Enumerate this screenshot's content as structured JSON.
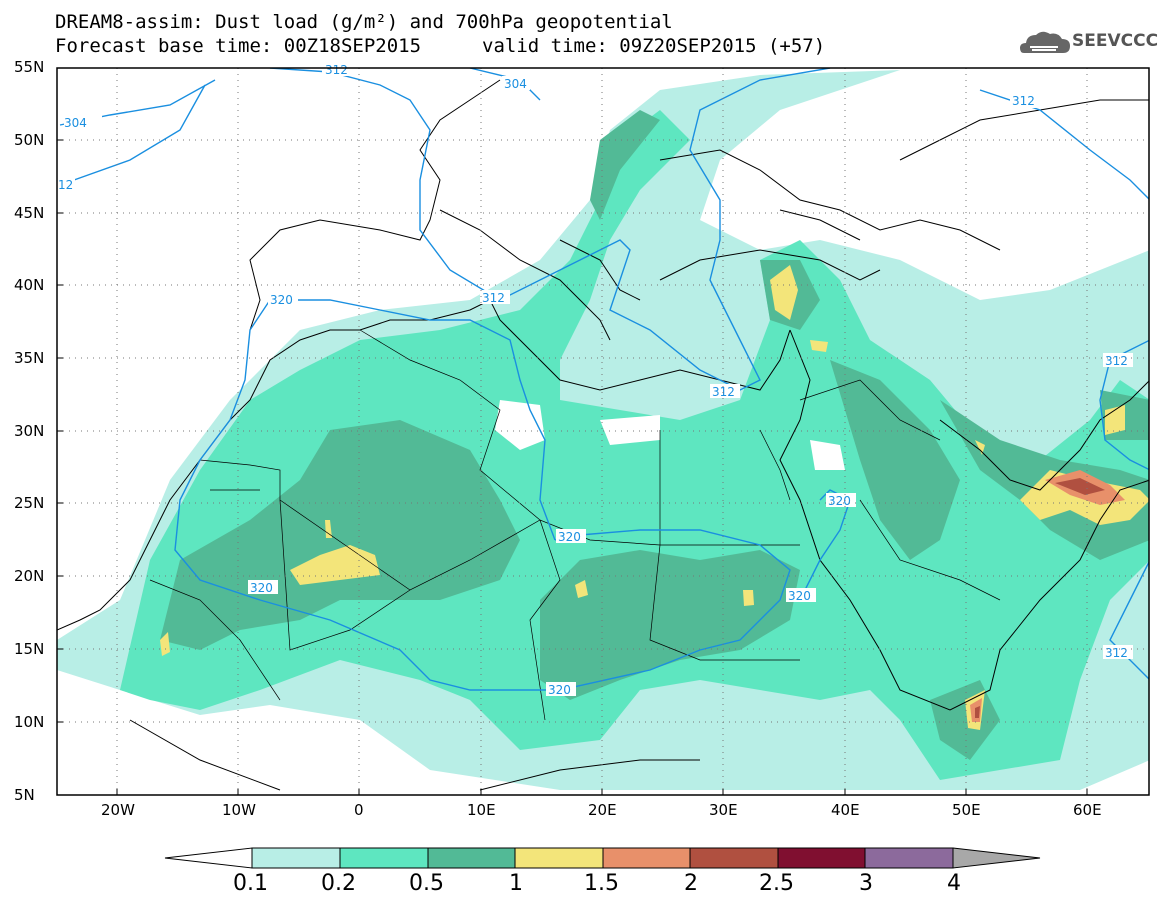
{
  "title": {
    "line1": "DREAM8-assim: Dust load (g/m²) and 700hPa geopotential",
    "line2_left": "Forecast base time: 00Z18SEP2015",
    "line2_right": "valid time: 09Z20SEP2015 (+57)"
  },
  "logo": {
    "text": "SEEVCCC",
    "icon": "cloud-logo-icon"
  },
  "axes": {
    "lat_labels": [
      "55N",
      "50N",
      "45N",
      "40N",
      "35N",
      "30N",
      "25N",
      "20N",
      "15N",
      "10N",
      "5N"
    ],
    "lon_labels": [
      "20W",
      "10W",
      "0",
      "10E",
      "20E",
      "30E",
      "40E",
      "50E",
      "60E"
    ]
  },
  "contour_labels": [
    "312",
    "304",
    "304",
    "312",
    "12",
    "320",
    "312",
    "312",
    "320",
    "320",
    "320",
    "320",
    "320",
    "312",
    "312"
  ],
  "colorbar": {
    "levels": [
      "0.1",
      "0.2",
      "0.5",
      "1",
      "1.5",
      "2",
      "2.5",
      "3",
      "4"
    ],
    "colors": [
      "#ffffff",
      "#b8eee6",
      "#5ee6c0",
      "#52ba96",
      "#f3e57a",
      "#e8906a",
      "#b05040",
      "#800f30",
      "#8c6a9c",
      "#a8a8a8"
    ]
  },
  "colors": {
    "c1": "#b8eee6",
    "c2": "#5ee6c0",
    "c3": "#52ba96",
    "c4": "#f3e57a",
    "c5": "#e8906a",
    "c6": "#b05040",
    "c7": "#800f30",
    "contour": "#1a8fe0"
  }
}
